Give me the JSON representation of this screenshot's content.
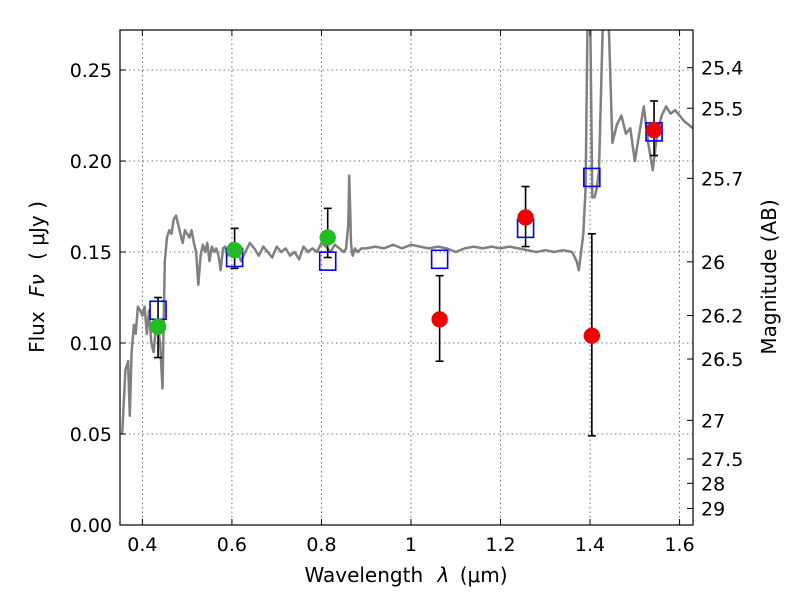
{
  "chart_data": {
    "type": "scatter",
    "title": "",
    "xlabel_text": "Wavelength",
    "xlabel_symbol": "λ",
    "xlabel_unit": "(μm)",
    "ylabel_text": "Flux",
    "ylabel_symbol": "Fν",
    "ylabel_unit": "( μJy )",
    "y2label": "Magnitude (AB)",
    "xlim": [
      0.35,
      1.63
    ],
    "ylim": [
      0.0,
      0.272
    ],
    "grid": true,
    "legend": null,
    "x_ticks": [
      {
        "v": 0.4,
        "label": "0.4"
      },
      {
        "v": 0.6,
        "label": "0.6"
      },
      {
        "v": 0.8,
        "label": "0.8"
      },
      {
        "v": 1.0,
        "label": "1"
      },
      {
        "v": 1.2,
        "label": "1.2"
      },
      {
        "v": 1.4,
        "label": "1.4"
      },
      {
        "v": 1.6,
        "label": "1.6"
      }
    ],
    "y_ticks": [
      {
        "v": 0.0,
        "label": "0.00"
      },
      {
        "v": 0.05,
        "label": "0.05"
      },
      {
        "v": 0.1,
        "label": "0.10"
      },
      {
        "v": 0.15,
        "label": "0.15"
      },
      {
        "v": 0.2,
        "label": "0.20"
      },
      {
        "v": 0.25,
        "label": "0.25"
      }
    ],
    "mag_ticks": [
      {
        "v": 0.2513,
        "label": "25.4"
      },
      {
        "v": 0.229,
        "label": "25.5"
      },
      {
        "v": 0.1905,
        "label": "25.7"
      },
      {
        "v": 0.1446,
        "label": "26"
      },
      {
        "v": 0.1151,
        "label": "26.2"
      },
      {
        "v": 0.0912,
        "label": "26.5"
      },
      {
        "v": 0.0575,
        "label": "27"
      },
      {
        "v": 0.0363,
        "label": "27.5"
      },
      {
        "v": 0.0229,
        "label": "28"
      },
      {
        "v": 0.0091,
        "label": "29"
      }
    ],
    "series": [
      {
        "kind": "template-spectrum",
        "color": "#808080",
        "x": [
          0.355,
          0.362,
          0.368,
          0.372,
          0.376,
          0.381,
          0.385,
          0.39,
          0.395,
          0.4,
          0.405,
          0.41,
          0.415,
          0.42,
          0.425,
          0.43,
          0.435,
          0.44,
          0.445,
          0.45,
          0.455,
          0.46,
          0.465,
          0.47,
          0.475,
          0.48,
          0.485,
          0.49,
          0.495,
          0.5,
          0.505,
          0.51,
          0.515,
          0.52,
          0.525,
          0.53,
          0.535,
          0.54,
          0.545,
          0.55,
          0.555,
          0.56,
          0.565,
          0.57,
          0.575,
          0.58,
          0.585,
          0.59,
          0.595,
          0.6,
          0.61,
          0.62,
          0.63,
          0.64,
          0.65,
          0.66,
          0.67,
          0.68,
          0.69,
          0.7,
          0.71,
          0.72,
          0.73,
          0.74,
          0.75,
          0.76,
          0.77,
          0.78,
          0.79,
          0.8,
          0.81,
          0.82,
          0.83,
          0.84,
          0.85,
          0.855,
          0.86,
          0.862,
          0.864,
          0.866,
          0.868,
          0.87,
          0.875,
          0.88,
          0.89,
          0.9,
          0.92,
          0.94,
          0.96,
          0.98,
          1.0,
          1.02,
          1.04,
          1.06,
          1.08,
          1.1,
          1.12,
          1.14,
          1.16,
          1.18,
          1.2,
          1.22,
          1.24,
          1.26,
          1.28,
          1.3,
          1.32,
          1.34,
          1.36,
          1.37,
          1.375,
          1.38,
          1.385,
          1.39,
          1.395,
          1.4,
          1.405,
          1.41,
          1.415,
          1.42,
          1.43,
          1.44,
          1.45,
          1.46,
          1.47,
          1.48,
          1.49,
          1.5,
          1.51,
          1.52,
          1.53,
          1.54,
          1.55,
          1.56,
          1.57,
          1.58,
          1.59,
          1.6,
          1.61,
          1.62,
          1.63
        ],
        "y": [
          0.05,
          0.085,
          0.09,
          0.06,
          0.095,
          0.11,
          0.105,
          0.12,
          0.118,
          0.115,
          0.12,
          0.105,
          0.118,
          0.1,
          0.095,
          0.108,
          0.11,
          0.098,
          0.075,
          0.145,
          0.158,
          0.162,
          0.16,
          0.168,
          0.17,
          0.165,
          0.16,
          0.155,
          0.162,
          0.16,
          0.158,
          0.162,
          0.155,
          0.15,
          0.132,
          0.148,
          0.154,
          0.15,
          0.155,
          0.145,
          0.153,
          0.15,
          0.152,
          0.148,
          0.14,
          0.152,
          0.153,
          0.148,
          0.154,
          0.155,
          0.152,
          0.145,
          0.15,
          0.155,
          0.152,
          0.148,
          0.153,
          0.15,
          0.147,
          0.153,
          0.15,
          0.152,
          0.148,
          0.15,
          0.146,
          0.153,
          0.15,
          0.152,
          0.15,
          0.155,
          0.153,
          0.15,
          0.154,
          0.152,
          0.15,
          0.152,
          0.165,
          0.192,
          0.175,
          0.155,
          0.15,
          0.148,
          0.152,
          0.15,
          0.152,
          0.152,
          0.153,
          0.152,
          0.154,
          0.152,
          0.154,
          0.153,
          0.152,
          0.153,
          0.152,
          0.15,
          0.152,
          0.153,
          0.152,
          0.153,
          0.152,
          0.153,
          0.152,
          0.151,
          0.15,
          0.151,
          0.15,
          0.151,
          0.15,
          0.145,
          0.14,
          0.15,
          0.16,
          0.185,
          0.29,
          0.29,
          0.18,
          0.18,
          0.185,
          0.195,
          0.29,
          0.29,
          0.21,
          0.22,
          0.225,
          0.215,
          0.218,
          0.2,
          0.215,
          0.23,
          0.21,
          0.195,
          0.215,
          0.225,
          0.23,
          0.226,
          0.228,
          0.225,
          0.222,
          0.22,
          0.218
        ]
      },
      {
        "kind": "model-photometry",
        "marker": "open-square",
        "color": "#0000ee",
        "points": [
          {
            "x": 0.435,
            "y": 0.118
          },
          {
            "x": 0.606,
            "y": 0.147
          },
          {
            "x": 0.814,
            "y": 0.145
          },
          {
            "x": 1.064,
            "y": 0.146
          },
          {
            "x": 1.256,
            "y": 0.163
          },
          {
            "x": 1.404,
            "y": 0.191
          },
          {
            "x": 1.543,
            "y": 0.216
          }
        ]
      },
      {
        "kind": "observed-optical",
        "marker": "filled-circle",
        "color": "#22bb22",
        "points": [
          {
            "x": 0.435,
            "y": 0.109,
            "err_lo": 0.017,
            "err_hi": 0.016
          },
          {
            "x": 0.606,
            "y": 0.151,
            "err_lo": 0.01,
            "err_hi": 0.012
          },
          {
            "x": 0.814,
            "y": 0.158,
            "err_lo": 0.011,
            "err_hi": 0.016
          }
        ]
      },
      {
        "kind": "observed-nir",
        "marker": "filled-circle",
        "color": "#ee0000",
        "points": [
          {
            "x": 1.064,
            "y": 0.113,
            "err_lo": 0.023,
            "err_hi": 0.024
          },
          {
            "x": 1.256,
            "y": 0.169,
            "err_lo": 0.016,
            "err_hi": 0.017
          },
          {
            "x": 1.404,
            "y": 0.104,
            "err_lo": 0.055,
            "err_hi": 0.056
          },
          {
            "x": 1.543,
            "y": 0.217,
            "err_lo": 0.014,
            "err_hi": 0.016
          }
        ]
      }
    ]
  }
}
